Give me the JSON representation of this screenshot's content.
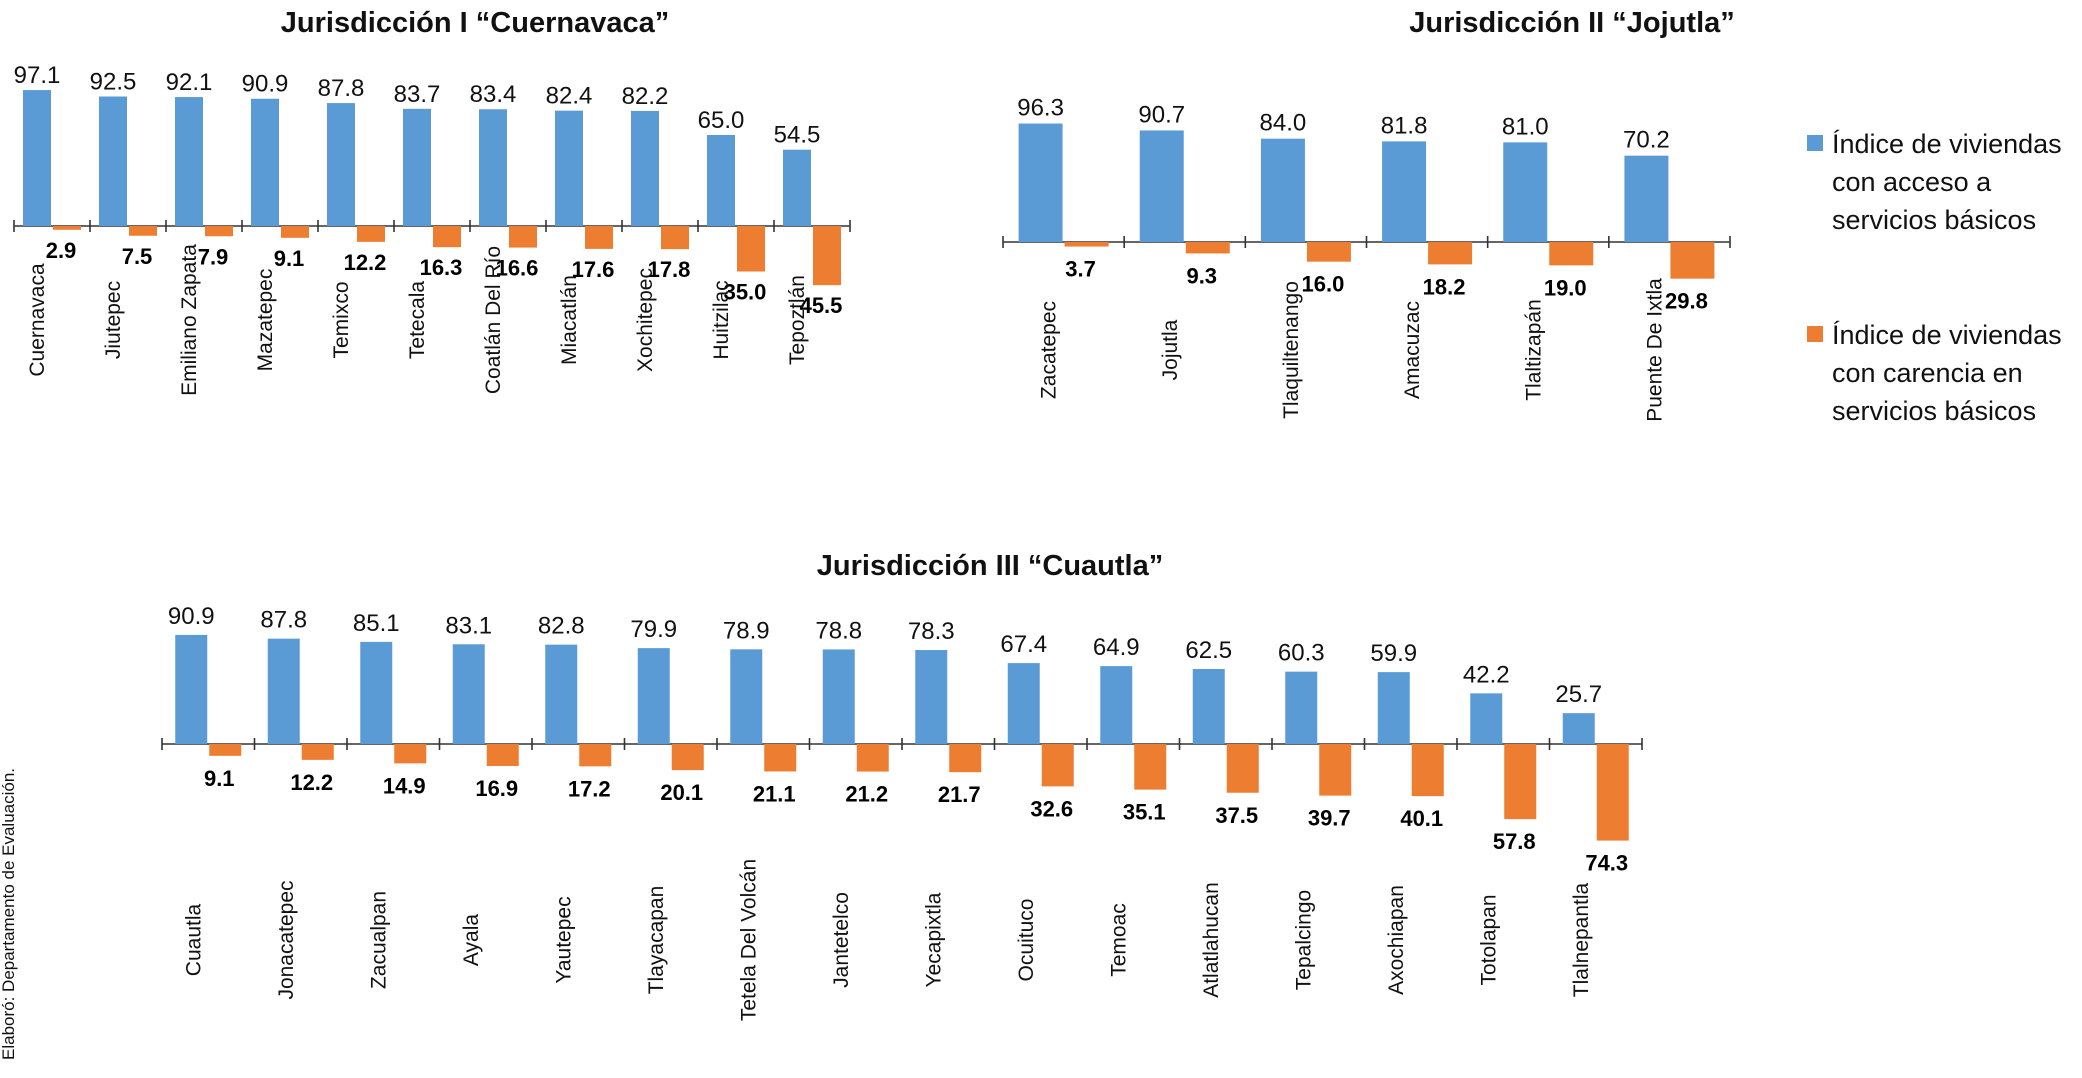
{
  "colors": {
    "access": "#5B9BD5",
    "lack": "#ED7D31",
    "axis": "#333333"
  },
  "legend": {
    "access_lines": [
      "Índice de viviendas",
      "con acceso a",
      "servicios básicos"
    ],
    "lack_lines": [
      "Índice de viviendas",
      "con carencia en",
      "servicios básicos"
    ]
  },
  "source_note": "Elaboró: Departamento de Evaluación.",
  "chart_data": [
    {
      "type": "bar",
      "title": "Jurisdicción I “Cuernavaca”",
      "categories": [
        "Cuernavaca",
        "Jiutepec",
        "Emiliano Zapata",
        "Mazatepec",
        "Temixco",
        "Tetecala",
        "Coatlán Del Río",
        "Miacatlán",
        "Xochitepec",
        "Huitzilac",
        "Tepoztlán"
      ],
      "series": [
        {
          "name": "Índice de viviendas con acceso a servicios básicos",
          "values": [
            97.1,
            92.5,
            92.1,
            90.9,
            87.8,
            83.7,
            83.4,
            82.4,
            82.2,
            65.0,
            54.5
          ],
          "labels": [
            "97.1",
            "92.5",
            "92.1",
            "90.9",
            "87.8",
            "83.7",
            "83.4",
            "82.4",
            "82.2",
            "65.0",
            "54.5"
          ],
          "direction": "up"
        },
        {
          "name": "Índice de viviendas con carencia en servicios básicos",
          "values": [
            2.9,
            7.5,
            7.9,
            9.1,
            12.2,
            16.3,
            16.6,
            17.6,
            17.8,
            35.0,
            45.5
          ],
          "labels": [
            "2.9",
            "7.5",
            "7.9",
            "9.1",
            "12.2",
            "16.3",
            "16.6",
            "17.6",
            "17.8",
            "35.0",
            "45.5"
          ],
          "direction": "down"
        }
      ]
    },
    {
      "type": "bar",
      "title": "Jurisdicción II “Jojutla”",
      "categories": [
        "Zacatepec",
        "Jojutla",
        "Tlaquiltenango",
        "Amacuzac",
        "Tlaltizapán",
        "Puente De Ixtla"
      ],
      "series": [
        {
          "name": "Índice de viviendas con acceso a servicios básicos",
          "values": [
            96.3,
            90.7,
            84.0,
            81.8,
            81.0,
            70.2
          ],
          "labels": [
            "96.3",
            "90.7",
            "84.0",
            "81.8",
            "81.0",
            "70.2"
          ],
          "direction": "up"
        },
        {
          "name": "Índice de viviendas con carencia en servicios básicos",
          "values": [
            3.7,
            9.3,
            16.0,
            18.2,
            19.0,
            29.8
          ],
          "labels": [
            "3.7",
            "9.3",
            "16.0",
            "18.2",
            "19.0",
            "29.8"
          ],
          "direction": "down"
        }
      ]
    },
    {
      "type": "bar",
      "title": "Jurisdicción III “Cuautla”",
      "categories": [
        "Cuautla",
        "Jonacatepec",
        "Zacualpan",
        "Ayala",
        "Yautepec",
        "Tlayacapan",
        "Tetela Del Volcán",
        "Jantetelco",
        "Yecapixtla",
        "Ocuituco",
        "Temoac",
        "Atlatlahucan",
        "Tepalcingo",
        "Axochiapan",
        "Totolapan",
        "Tlalnepantla"
      ],
      "series": [
        {
          "name": "Índice de viviendas con acceso a servicios básicos",
          "values": [
            90.9,
            87.8,
            85.1,
            83.1,
            82.8,
            79.9,
            78.9,
            78.8,
            78.3,
            67.4,
            64.9,
            62.5,
            60.3,
            59.9,
            42.2,
            25.7
          ],
          "labels": [
            "90.9",
            "87.8",
            "85.1",
            "83.1",
            "82.8",
            "79.9",
            "78.9",
            "78.8",
            "78.3",
            "67.4",
            "64.9",
            "62.5",
            "60.3",
            "59.9",
            "42.2",
            "25.7"
          ],
          "direction": "up"
        },
        {
          "name": "Índice de viviendas con carencia en servicios básicos",
          "values": [
            9.1,
            12.2,
            14.9,
            16.9,
            17.2,
            20.1,
            21.1,
            21.2,
            21.7,
            32.6,
            35.1,
            37.5,
            39.7,
            40.1,
            57.8,
            74.3
          ],
          "labels": [
            "9.1",
            "12.2",
            "14.9",
            "16.9",
            "17.2",
            "20.1",
            "21.1",
            "21.2",
            "21.7",
            "32.6",
            "35.1",
            "37.5",
            "39.7",
            "40.1",
            "57.8",
            "74.3"
          ],
          "direction": "down"
        }
      ]
    }
  ]
}
